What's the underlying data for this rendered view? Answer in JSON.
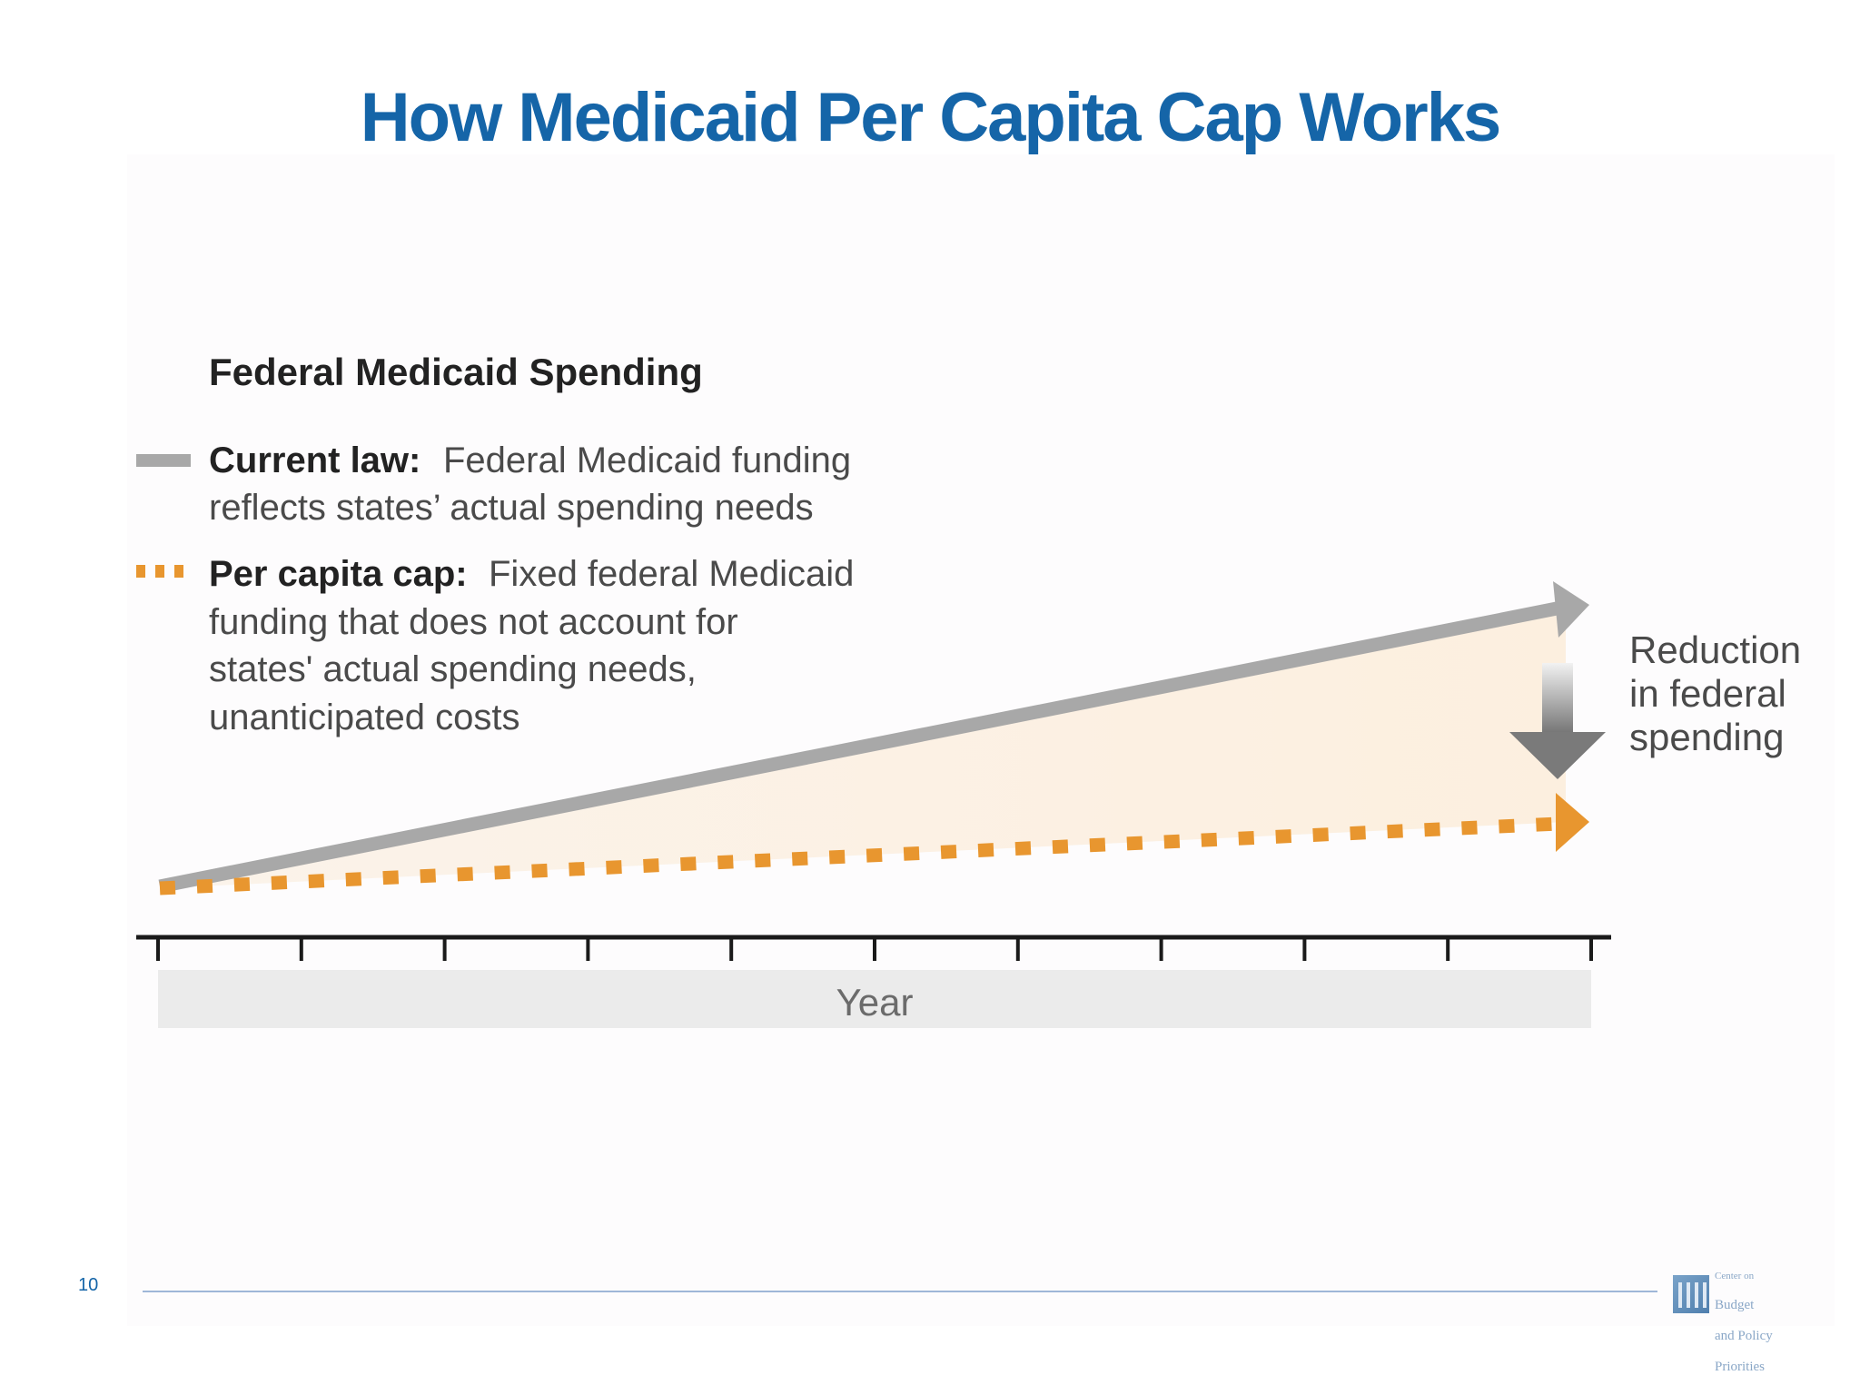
{
  "slide": {
    "title": "How Medicaid Per Capita Cap Works",
    "page_number": "10"
  },
  "diagram": {
    "heading": "Federal Medicaid Spending",
    "legend": [
      {
        "key": "Current law:",
        "lines": [
          "Federal Medicaid funding",
          "reflects states’ actual spending needs"
        ],
        "color": "#a8a8a8",
        "style": "solid"
      },
      {
        "key": "Per capita cap:",
        "lines": [
          "Fixed federal Medicaid",
          "funding that does not account for",
          "states' actual spending needs,",
          "unanticipated costs"
        ],
        "color": "#e8962f",
        "style": "dotted"
      }
    ],
    "annotation": [
      "Reduction",
      "in federal",
      "spending"
    ],
    "x_axis_label": "Year",
    "tick_count": 11,
    "colors": {
      "current_law": "#a8a8a8",
      "per_capita_cap": "#e8962f",
      "gap_fill": "#fbf1e4",
      "axis": "#1a1a1a",
      "axis_label_band": "#ebebeb",
      "text": "#4a4a4a",
      "heading": "#222222"
    }
  },
  "logo": {
    "lines": [
      "Center on",
      "Budget",
      "and Policy",
      "Priorities"
    ]
  }
}
